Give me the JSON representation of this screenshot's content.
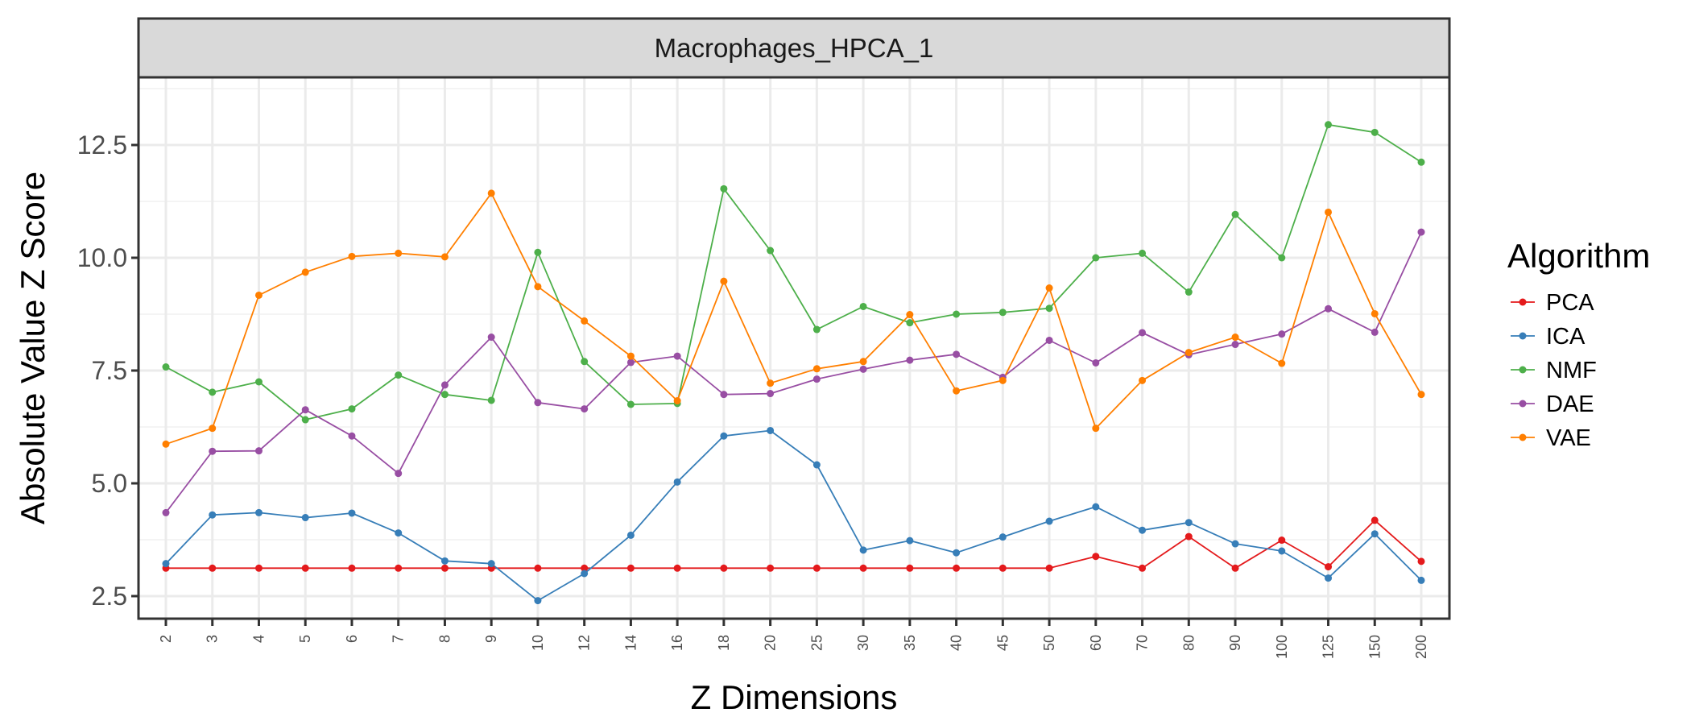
{
  "chart_data": {
    "type": "line",
    "facet_label": "Macrophages_HPCA_1",
    "xlabel": "Z Dimensions",
    "ylabel": "Absolute Value Z Score",
    "ylim": [
      2.0,
      14.0
    ],
    "yticks": [
      2.5,
      5.0,
      7.5,
      10.0,
      12.5
    ],
    "ytick_labels": [
      "2.5",
      "5.0",
      "7.5",
      "10.0",
      "12.5"
    ],
    "grid": true,
    "legend_title": "Algorithm",
    "legend_position": "right",
    "categories": [
      "2",
      "3",
      "4",
      "5",
      "6",
      "7",
      "8",
      "9",
      "10",
      "12",
      "14",
      "16",
      "18",
      "20",
      "25",
      "30",
      "35",
      "40",
      "45",
      "50",
      "60",
      "70",
      "80",
      "90",
      "100",
      "125",
      "150",
      "200"
    ],
    "series": [
      {
        "name": "PCA",
        "color": "#E41A1C",
        "values": [
          3.12,
          3.12,
          3.12,
          3.12,
          3.12,
          3.12,
          3.12,
          3.12,
          3.12,
          3.12,
          3.12,
          3.12,
          3.12,
          3.12,
          3.12,
          3.12,
          3.12,
          3.12,
          3.12,
          3.12,
          3.38,
          3.12,
          3.82,
          3.12,
          3.74,
          3.15,
          4.18,
          3.27
        ]
      },
      {
        "name": "ICA",
        "color": "#377EB8",
        "values": [
          3.22,
          4.3,
          4.35,
          4.24,
          4.34,
          3.9,
          3.28,
          3.22,
          2.4,
          3.0,
          3.85,
          5.03,
          6.05,
          6.17,
          5.41,
          3.52,
          3.73,
          3.46,
          3.81,
          4.16,
          4.48,
          3.96,
          4.13,
          3.66,
          3.5,
          2.9,
          3.88,
          2.85
        ]
      },
      {
        "name": "NMF",
        "color": "#4DAF4A",
        "values": [
          7.58,
          7.02,
          7.25,
          6.41,
          6.65,
          7.4,
          6.97,
          6.84,
          10.12,
          7.7,
          6.75,
          6.77,
          11.53,
          10.16,
          8.41,
          8.92,
          8.56,
          8.75,
          8.79,
          8.88,
          10.0,
          10.1,
          9.24,
          10.96,
          10.0,
          12.95,
          12.78,
          12.12
        ]
      },
      {
        "name": "DAE",
        "color": "#984EA3",
        "values": [
          4.35,
          5.71,
          5.72,
          6.63,
          6.05,
          5.22,
          7.18,
          8.24,
          6.79,
          6.65,
          7.68,
          7.82,
          6.97,
          6.99,
          7.31,
          7.53,
          7.73,
          7.86,
          7.35,
          8.17,
          7.67,
          8.34,
          7.85,
          8.08,
          8.31,
          8.87,
          8.35,
          10.57
        ]
      },
      {
        "name": "VAE",
        "color": "#FF7F00",
        "values": [
          5.87,
          6.22,
          9.17,
          9.68,
          10.03,
          10.1,
          10.02,
          11.43,
          9.36,
          8.6,
          7.82,
          6.83,
          9.48,
          7.22,
          7.54,
          7.7,
          8.74,
          7.05,
          7.28,
          9.33,
          6.22,
          7.28,
          7.9,
          8.24,
          7.66,
          11.01,
          8.76,
          6.97
        ]
      }
    ]
  }
}
